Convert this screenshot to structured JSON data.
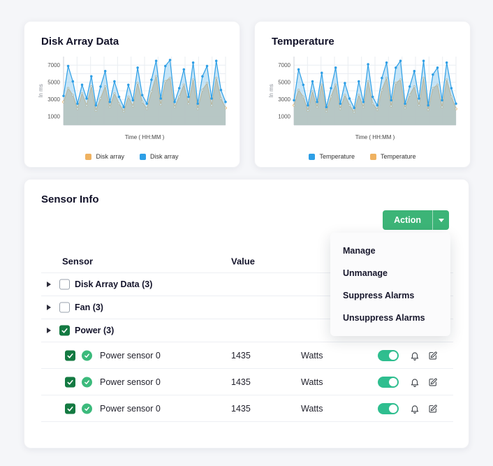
{
  "colors": {
    "accent_green": "#3cb477",
    "checkbox_green": "#147a42",
    "toggle_green": "#2fbe8f",
    "chart_blue": "#2e9fe6",
    "chart_orange": "#efb261"
  },
  "cards": {
    "disk": {
      "title": "Disk Array Data"
    },
    "temp": {
      "title": "Temperature"
    }
  },
  "chart_data": [
    {
      "type": "area",
      "title": "Disk Array Data",
      "xlabel": "Time ( HH:MM )",
      "ylabel": "In ms",
      "yticks": [
        1000,
        3000,
        5000,
        7000
      ],
      "ylim": [
        0,
        8000
      ],
      "grid": true,
      "legend_position": "bottom",
      "series": [
        {
          "name": "Disk array",
          "color": "#e2a553",
          "fill": "#dcbd93",
          "fill_opacity": 0.92,
          "marker_fill": "#ffffff",
          "values": [
            2700,
            4300,
            3500,
            1900,
            3700,
            2300,
            4500,
            1700,
            3100,
            4500,
            2100,
            3700,
            2500,
            1600,
            3300,
            2200,
            4900,
            2700,
            1900,
            3900,
            5700,
            2400,
            5100,
            5500,
            2100,
            3300,
            4700,
            2500,
            5300,
            1900,
            4100,
            4900,
            2300,
            5500,
            3100,
            2000
          ]
        },
        {
          "name": "Disk array",
          "color": "#2e9fe6",
          "fill": "#8fcbf0",
          "fill_opacity": 0.5,
          "marker_fill": "#2e9fe6",
          "values": [
            3400,
            6900,
            5100,
            2500,
            4700,
            3100,
            5700,
            2300,
            4500,
            6300,
            2700,
            5100,
            3300,
            2100,
            4700,
            2900,
            6700,
            3500,
            2500,
            5300,
            7500,
            3100,
            6900,
            7600,
            2700,
            4300,
            6500,
            3300,
            7300,
            2500,
            5700,
            6900,
            3100,
            7500,
            4100,
            2700
          ]
        }
      ],
      "legend": [
        {
          "label": "Disk array",
          "color": "#efb261"
        },
        {
          "label": "Disk array",
          "color": "#2e9fe6"
        }
      ]
    },
    {
      "type": "area",
      "title": "Temperature",
      "xlabel": "Time ( HH:MM )",
      "ylabel": "In ms",
      "yticks": [
        1000,
        3000,
        5000,
        7000
      ],
      "ylim": [
        0,
        8000
      ],
      "grid": true,
      "legend_position": "bottom",
      "series": [
        {
          "name": "Temperature",
          "color": "#e2a553",
          "fill": "#dcbd93",
          "fill_opacity": 0.92,
          "marker_fill": "#ffffff",
          "values": [
            2300,
            4100,
            3300,
            1700,
            3900,
            2100,
            4700,
            1600,
            3300,
            4700,
            1900,
            3500,
            2300,
            1500,
            3500,
            2100,
            5100,
            2500,
            1800,
            4100,
            5500,
            2200,
            4900,
            5300,
            2000,
            3500,
            4500,
            2300,
            5500,
            1800,
            4300,
            4700,
            2100,
            5300,
            3300,
            1900
          ]
        },
        {
          "name": "Temperature",
          "color": "#2e9fe6",
          "fill": "#8fcbf0",
          "fill_opacity": 0.5,
          "marker_fill": "#2e9fe6",
          "values": [
            2900,
            6500,
            4700,
            2300,
            5100,
            2700,
            6100,
            2100,
            4300,
            6700,
            2500,
            4900,
            3100,
            2000,
            5100,
            2700,
            7100,
            3300,
            2300,
            5500,
            7300,
            2900,
            6700,
            7500,
            2500,
            4500,
            6300,
            3100,
            7500,
            2300,
            5900,
            6700,
            2900,
            7300,
            4300,
            2500
          ]
        }
      ],
      "legend": [
        {
          "label": "Temperature",
          "color": "#2e9fe6"
        },
        {
          "label": "Temperature",
          "color": "#efb261"
        }
      ]
    }
  ],
  "sensor_info": {
    "title": "Sensor Info",
    "action_button": {
      "label": "Action"
    },
    "menu": {
      "items": [
        "Manage",
        "Unmanage",
        "Suppress Alarms",
        "Unsuppress Alarms"
      ]
    },
    "table": {
      "headers": {
        "sensor": "Sensor",
        "value": "Value"
      },
      "groups": [
        {
          "label": "Disk Array Data (3)",
          "checked": false,
          "expanded": false
        },
        {
          "label": "Fan (3)",
          "checked": false,
          "expanded": false
        },
        {
          "label": "Power (3)",
          "checked": true,
          "expanded": true,
          "rows": [
            {
              "name": "Power sensor 0",
              "value": "1435",
              "unit": "Watts",
              "enabled": true
            },
            {
              "name": "Power sensor 0",
              "value": "1435",
              "unit": "Watts",
              "enabled": true
            },
            {
              "name": "Power sensor 0",
              "value": "1435",
              "unit": "Watts",
              "enabled": true
            }
          ]
        }
      ]
    }
  }
}
